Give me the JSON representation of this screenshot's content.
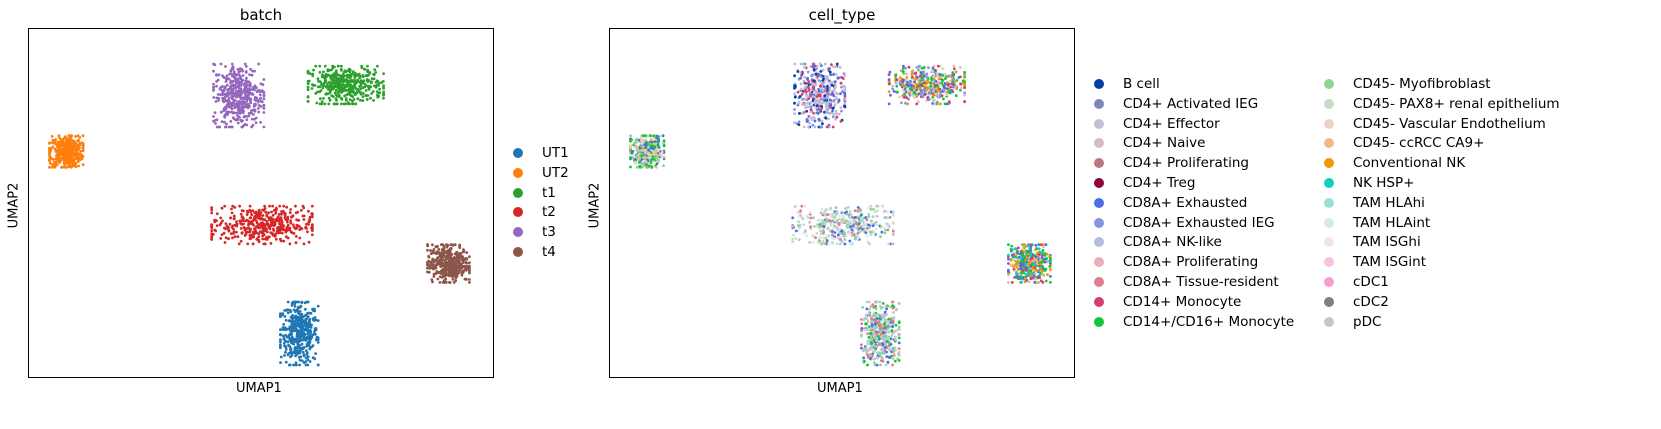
{
  "panels": [
    {
      "title": "batch",
      "xlabel": "UMAP1",
      "ylabel": "UMAP2",
      "legend": [
        {
          "label": "UT1",
          "color": "#1f77b4"
        },
        {
          "label": "UT2",
          "color": "#ff7f0e"
        },
        {
          "label": "t1",
          "color": "#2ca02c"
        },
        {
          "label": "t2",
          "color": "#d62728"
        },
        {
          "label": "t3",
          "color": "#9467bd"
        },
        {
          "label": "t4",
          "color": "#8c564b"
        }
      ]
    },
    {
      "title": "cell_type",
      "xlabel": "UMAP1",
      "ylabel": "UMAP2",
      "legend_col1": [
        {
          "label": "B cell",
          "color": "#023fa5"
        },
        {
          "label": "CD4+ Activated IEG",
          "color": "#7d87b9"
        },
        {
          "label": "CD4+ Effector",
          "color": "#bec1d4"
        },
        {
          "label": "CD4+ Naive",
          "color": "#d6bcc0"
        },
        {
          "label": "CD4+ Proliferating",
          "color": "#bb7784"
        },
        {
          "label": "CD4+ Treg",
          "color": "#8e063b"
        },
        {
          "label": "CD8A+ Exhausted",
          "color": "#4a6fe3"
        },
        {
          "label": "CD8A+ Exhausted IEG",
          "color": "#8595e1"
        },
        {
          "label": "CD8A+ NK-like",
          "color": "#b5bbe3"
        },
        {
          "label": "CD8A+ Proliferating",
          "color": "#e6afb9"
        },
        {
          "label": "CD8A+ Tissue-resident",
          "color": "#e07b91"
        },
        {
          "label": "CD14+ Monocyte",
          "color": "#d33f6a"
        },
        {
          "label": "CD14+/CD16+ Monocyte",
          "color": "#11c638"
        }
      ],
      "legend_col2": [
        {
          "label": "CD45- Myofibroblast",
          "color": "#8dd593"
        },
        {
          "label": "CD45- PAX8+ renal epithelium",
          "color": "#c6dec7"
        },
        {
          "label": "CD45- Vascular Endothelium",
          "color": "#ead3c6"
        },
        {
          "label": "CD45- ccRCC CA9+",
          "color": "#f0b98d"
        },
        {
          "label": "Conventional NK",
          "color": "#ef9708"
        },
        {
          "label": "NK HSP+",
          "color": "#0fcfc0"
        },
        {
          "label": "TAM HLAhi",
          "color": "#9cded6"
        },
        {
          "label": "TAM HLAint",
          "color": "#d5eae7"
        },
        {
          "label": "TAM ISGhi",
          "color": "#f3e1eb"
        },
        {
          "label": "TAM ISGint",
          "color": "#f6c4e1"
        },
        {
          "label": "cDC1",
          "color": "#f79cd4"
        },
        {
          "label": "cDC2",
          "color": "#7f7f7f"
        },
        {
          "label": "pDC",
          "color": "#c7c7c7"
        }
      ]
    }
  ],
  "chart_data": [
    {
      "type": "scatter",
      "title": "batch",
      "xlabel": "UMAP1",
      "ylabel": "UMAP2",
      "grid": false,
      "legend_placement": "right",
      "series": [
        {
          "name": "UT1",
          "color": "#1f77b4",
          "center": [
            0.58,
            0.13
          ],
          "spread": [
            0.045,
            0.1
          ]
        },
        {
          "name": "UT2",
          "color": "#ff7f0e",
          "center": [
            0.08,
            0.65
          ],
          "spread": [
            0.04,
            0.05
          ]
        },
        {
          "name": "t1",
          "color": "#2ca02c",
          "center": [
            0.68,
            0.84
          ],
          "spread": [
            0.09,
            0.06
          ]
        },
        {
          "name": "t2",
          "color": "#d62728",
          "center": [
            0.5,
            0.44
          ],
          "spread": [
            0.12,
            0.06
          ]
        },
        {
          "name": "t3",
          "color": "#9467bd",
          "center": [
            0.45,
            0.81
          ],
          "spread": [
            0.06,
            0.1
          ]
        },
        {
          "name": "t4",
          "color": "#8c564b",
          "center": [
            0.9,
            0.33
          ],
          "spread": [
            0.05,
            0.06
          ]
        }
      ]
    },
    {
      "type": "scatter",
      "title": "cell_type",
      "xlabel": "UMAP1",
      "ylabel": "UMAP2",
      "grid": false,
      "legend_placement": "right",
      "clusters": [
        {
          "center": [
            0.58,
            0.13
          ],
          "spread": [
            0.045,
            0.1
          ],
          "palette": [
            "#d6bcc0",
            "#11c638",
            "#8dd593",
            "#4a6fe3",
            "#e07b91",
            "#bec1d4",
            "#9cded6"
          ]
        },
        {
          "center": [
            0.08,
            0.65
          ],
          "spread": [
            0.04,
            0.05
          ],
          "palette": [
            "#f0b98d",
            "#8dd593",
            "#11c638",
            "#4a6fe3",
            "#ead3c6"
          ]
        },
        {
          "center": [
            0.68,
            0.84
          ],
          "spread": [
            0.09,
            0.06
          ],
          "palette": [
            "#11c638",
            "#4a6fe3",
            "#d33f6a",
            "#ef9708",
            "#d6bcc0",
            "#c6dec7",
            "#8595e1"
          ]
        },
        {
          "center": [
            0.5,
            0.44
          ],
          "spread": [
            0.12,
            0.06
          ],
          "palette": [
            "#4a6fe3",
            "#9cded6",
            "#c6dec7",
            "#e07b91",
            "#d5eae7",
            "#8dd593",
            "#f3e1eb",
            "#bec1d4"
          ]
        },
        {
          "center": [
            0.45,
            0.81
          ],
          "spread": [
            0.06,
            0.1
          ],
          "palette": [
            "#4a6fe3",
            "#8595e1",
            "#e6afb9",
            "#bec1d4",
            "#d33f6a",
            "#023fa5",
            "#b5bbe3"
          ]
        },
        {
          "center": [
            0.9,
            0.33
          ],
          "spread": [
            0.05,
            0.06
          ],
          "palette": [
            "#ef9708",
            "#4a6fe3",
            "#11c638",
            "#f0b98d",
            "#d33f6a",
            "#0fcfc0"
          ]
        }
      ]
    }
  ]
}
